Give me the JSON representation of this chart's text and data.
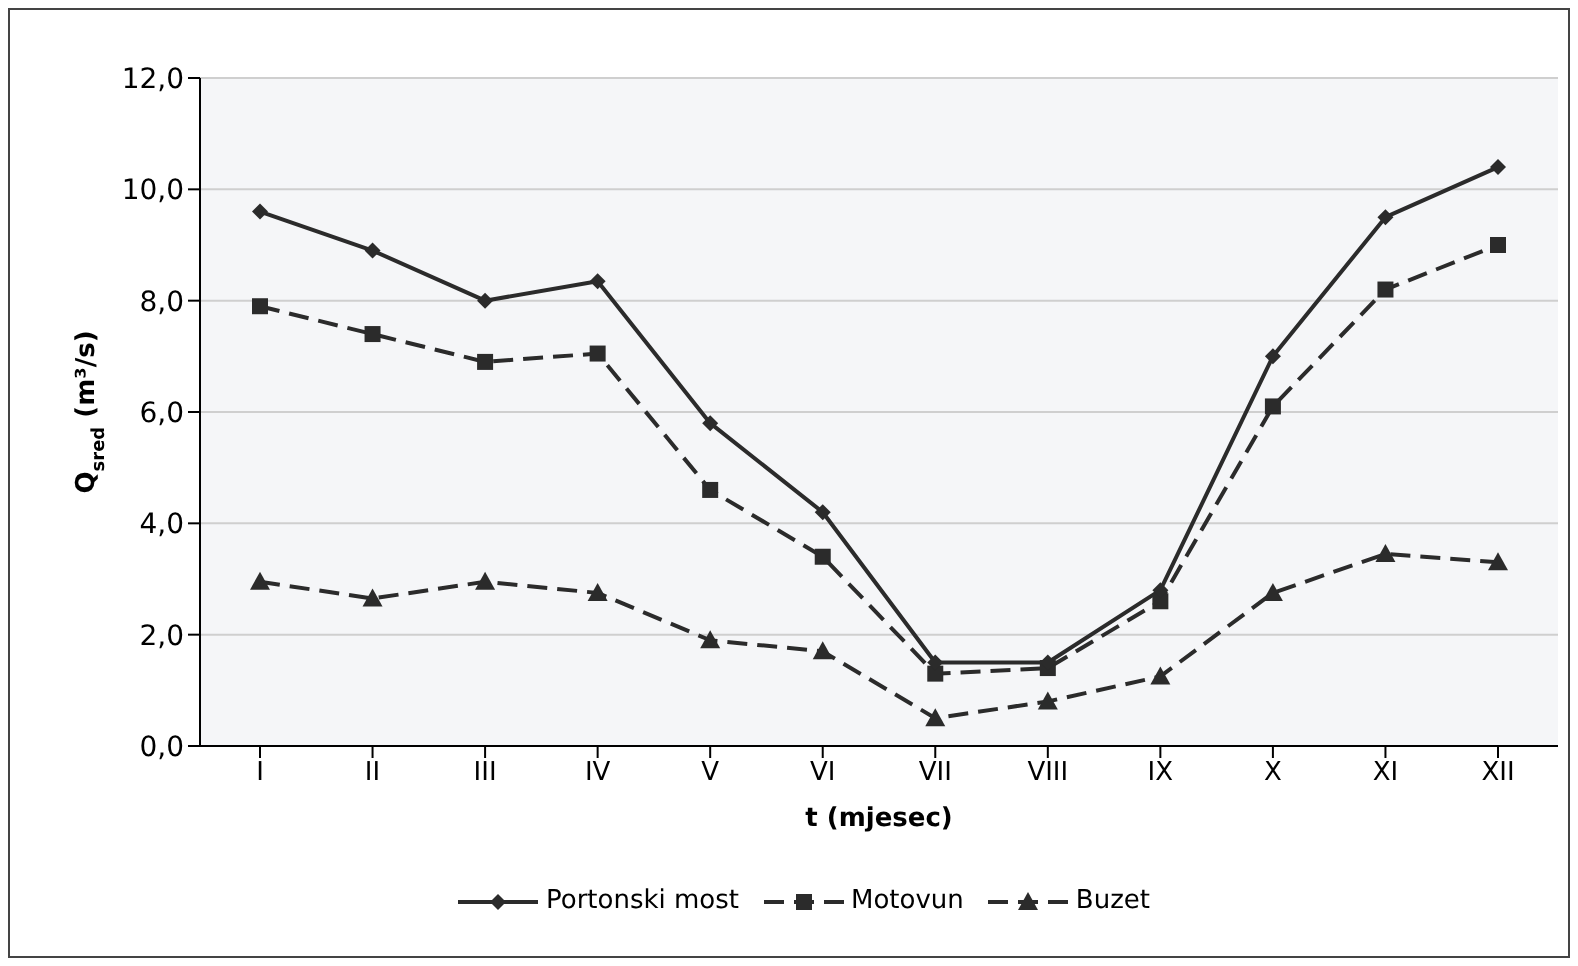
{
  "chart_data": {
    "type": "line",
    "xlabel": "t (mjesec)",
    "ylabel": "Q$_{sred}$ (m³/s)",
    "categories": [
      "I",
      "II",
      "III",
      "IV",
      "V",
      "VI",
      "VII",
      "VIII",
      "IX",
      "X",
      "XI",
      "XII"
    ],
    "series": [
      {
        "name": "Portonski most",
        "color": "#2b2b2b",
        "marker": "diamond",
        "line_style": "solid",
        "values": [
          9.6,
          8.9,
          8.0,
          8.35,
          5.8,
          4.2,
          1.5,
          1.5,
          2.8,
          7.0,
          9.5,
          10.4
        ]
      },
      {
        "name": "Motovun",
        "color": "#2b2b2b",
        "marker": "square",
        "line_style": "dashed",
        "values": [
          7.9,
          7.4,
          6.9,
          7.05,
          4.6,
          3.4,
          1.3,
          1.4,
          2.6,
          6.1,
          8.2,
          9.0
        ]
      },
      {
        "name": "Buzet",
        "color": "#2b2b2b",
        "marker": "triangle",
        "line_style": "dashed",
        "values": [
          2.95,
          2.65,
          2.95,
          2.75,
          1.9,
          1.7,
          0.5,
          0.8,
          1.25,
          2.75,
          3.45,
          3.3
        ]
      }
    ],
    "ylim": [
      0,
      12
    ],
    "yticks": [
      {
        "value": 0,
        "label": "0,0"
      },
      {
        "value": 2,
        "label": "2,0"
      },
      {
        "value": 4,
        "label": "4,0"
      },
      {
        "value": 6,
        "label": "6,0"
      },
      {
        "value": 8,
        "label": "8,0"
      },
      {
        "value": 10,
        "label": "10,0"
      },
      {
        "value": 12,
        "label": "12,0"
      }
    ],
    "grid": "y",
    "legend": "bottom"
  }
}
